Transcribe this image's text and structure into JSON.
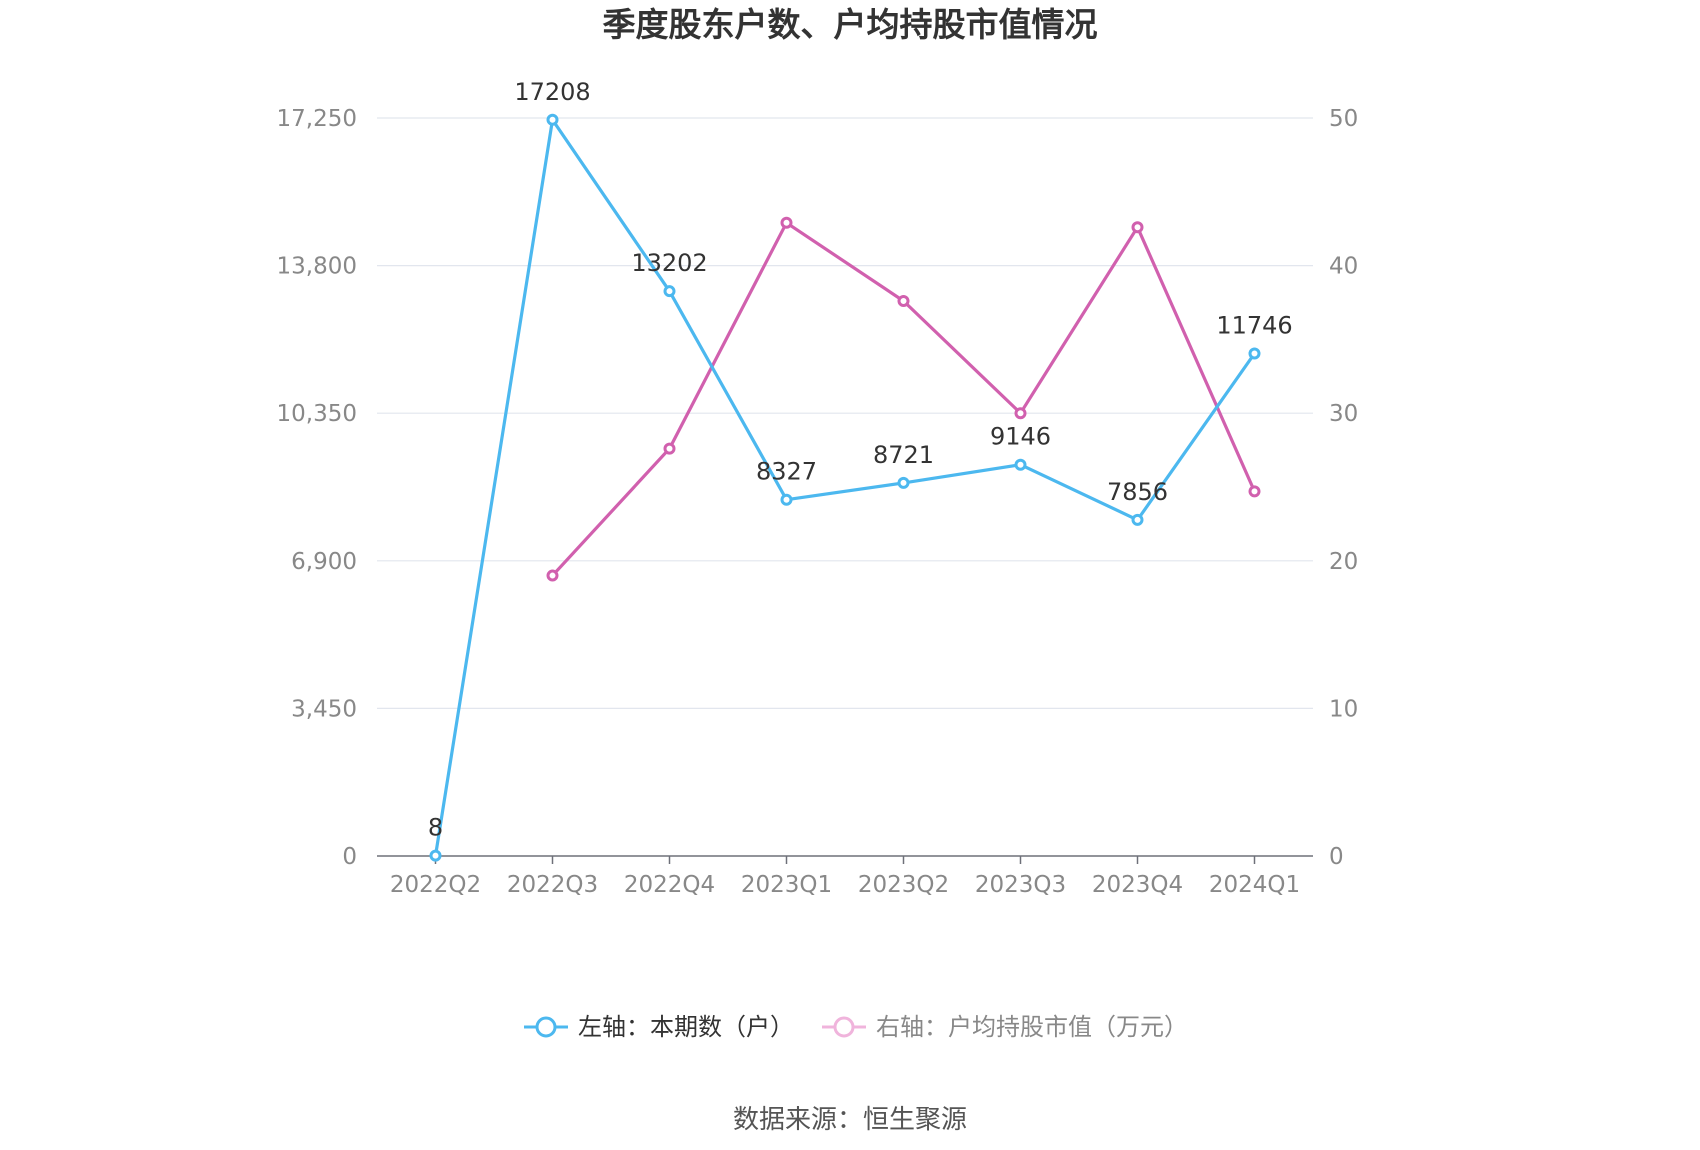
{
  "chart_data": {
    "type": "line",
    "title": "季度股东户数、户均持股市值情况",
    "categories": [
      "2022Q2",
      "2022Q3",
      "2022Q4",
      "2023Q1",
      "2023Q2",
      "2023Q3",
      "2023Q4",
      "2024Q1"
    ],
    "left_axis": {
      "ticks": [
        "0",
        "3,450",
        "6,900",
        "10,350",
        "13,800",
        "17,250"
      ],
      "ylim": [
        0,
        17250
      ]
    },
    "right_axis": {
      "ticks": [
        "0",
        "10",
        "20",
        "30",
        "40",
        "50"
      ],
      "ylim": [
        0,
        50
      ]
    },
    "series": [
      {
        "name": "左轴：本期数（户）",
        "axis": "left",
        "color": "#4cb8ef",
        "values": [
          8,
          17208,
          13202,
          8327,
          8721,
          9146,
          7856,
          11746
        ],
        "labels": [
          "8",
          "17208",
          "13202",
          "8327",
          "8721",
          "9146",
          "7856",
          "11746"
        ]
      },
      {
        "name": "右轴：户均持股市值（万元）",
        "axis": "right",
        "color": "#d160ae",
        "values": [
          null,
          19.0,
          27.6,
          42.9,
          37.6,
          30.0,
          42.6,
          24.7
        ]
      }
    ],
    "grid": true,
    "legend": "bottom-center"
  },
  "source": "数据来源：恒生聚源"
}
